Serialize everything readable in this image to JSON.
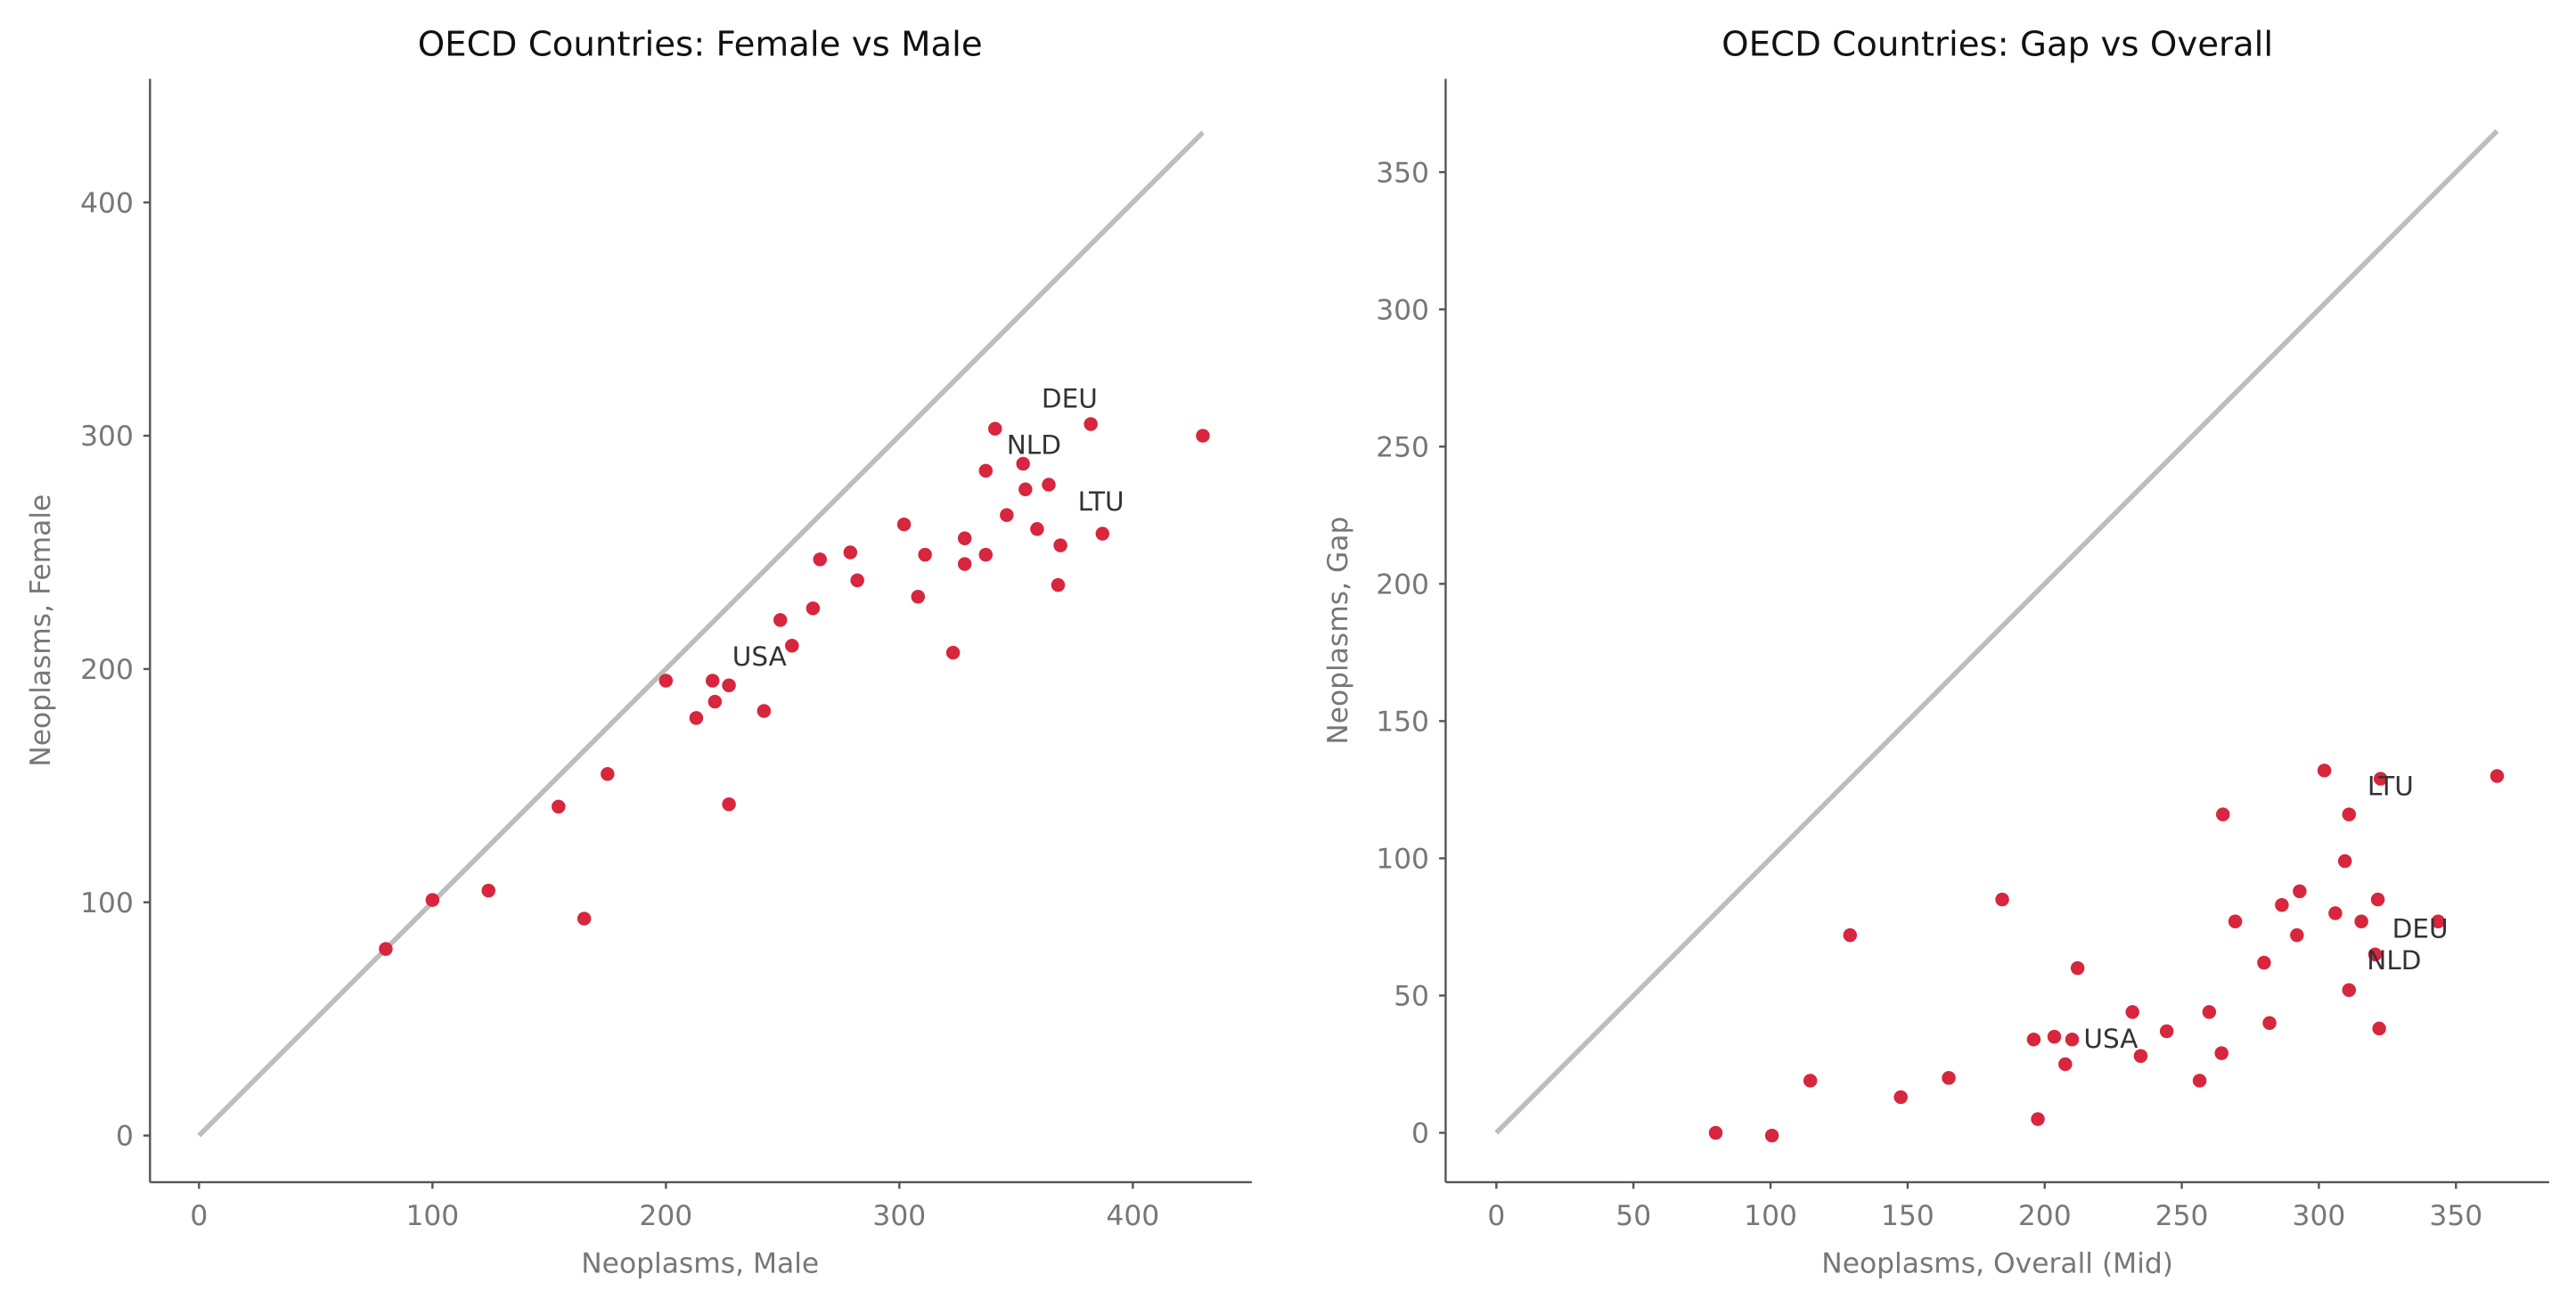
{
  "chart_data": [
    {
      "type": "scatter",
      "title": "OECD Countries: Female vs Male",
      "xlabel": "Neoplasms, Male",
      "ylabel": "Neoplasms, Female",
      "xlim": [
        -21,
        451
      ],
      "ylim": [
        -20,
        453
      ],
      "xticks": [
        0,
        100,
        200,
        300,
        400
      ],
      "yticks": [
        0,
        100,
        200,
        300,
        400
      ],
      "reference_line": {
        "from": 0,
        "to": 430,
        "color": "#bdbdbd"
      },
      "point_color": "#d7263d",
      "points": [
        [
          80,
          80
        ],
        [
          100,
          101
        ],
        [
          124,
          105
        ],
        [
          165,
          93
        ],
        [
          154,
          141
        ],
        [
          175,
          155
        ],
        [
          200,
          195
        ],
        [
          213,
          179
        ],
        [
          220,
          195
        ],
        [
          221,
          186
        ],
        [
          227,
          193
        ],
        [
          227,
          142
        ],
        [
          242,
          182
        ],
        [
          249,
          221
        ],
        [
          254,
          210
        ],
        [
          263,
          226
        ],
        [
          266,
          247
        ],
        [
          279,
          250
        ],
        [
          282,
          238
        ],
        [
          302,
          262
        ],
        [
          308,
          231
        ],
        [
          311,
          249
        ],
        [
          323,
          207
        ],
        [
          328,
          256
        ],
        [
          328,
          245
        ],
        [
          337,
          249
        ],
        [
          337,
          285
        ],
        [
          341,
          303
        ],
        [
          346,
          266
        ],
        [
          353,
          288
        ],
        [
          354,
          277
        ],
        [
          359,
          260
        ],
        [
          364,
          279
        ],
        [
          368,
          236
        ],
        [
          369,
          253
        ],
        [
          382,
          305
        ],
        [
          387,
          258
        ],
        [
          430,
          300
        ]
      ],
      "labels": [
        {
          "text": "USA",
          "x": 227,
          "y": 193
        },
        {
          "text": "NLD",
          "x": 353,
          "y": 288
        },
        {
          "text": "DEU",
          "x": 382,
          "y": 305
        },
        {
          "text": "LTU",
          "x": 387,
          "y": 258
        }
      ]
    },
    {
      "type": "scatter",
      "title": "OECD Countries: Gap vs Overall",
      "xlabel": "Neoplasms, Overall (Mid)",
      "ylabel": "Neoplasms, Gap",
      "xlim": [
        -18.5,
        384
      ],
      "ylim": [
        -18,
        384
      ],
      "xticks": [
        0,
        50,
        100,
        150,
        200,
        250,
        300,
        350
      ],
      "yticks": [
        0,
        50,
        100,
        150,
        200,
        250,
        300,
        350
      ],
      "reference_line": {
        "from": 0,
        "to": 365,
        "color": "#bdbdbd"
      },
      "point_color": "#d7263d",
      "points": [
        [
          80,
          0
        ],
        [
          100.5,
          -1
        ],
        [
          114.5,
          19
        ],
        [
          129,
          72
        ],
        [
          147.5,
          13
        ],
        [
          165,
          20
        ],
        [
          197.5,
          5
        ],
        [
          196,
          34
        ],
        [
          207.5,
          25
        ],
        [
          203.5,
          35
        ],
        [
          210,
          34
        ],
        [
          184.5,
          85
        ],
        [
          212,
          60
        ],
        [
          235,
          28
        ],
        [
          232,
          44
        ],
        [
          244.5,
          37
        ],
        [
          256.5,
          19
        ],
        [
          264.5,
          29
        ],
        [
          260,
          44
        ],
        [
          282,
          40
        ],
        [
          269.5,
          77
        ],
        [
          280,
          62
        ],
        [
          265,
          116
        ],
        [
          292,
          72
        ],
        [
          286.5,
          83
        ],
        [
          293,
          88
        ],
        [
          311,
          52
        ],
        [
          322,
          38
        ],
        [
          306,
          80
        ],
        [
          320.5,
          65
        ],
        [
          315.5,
          77
        ],
        [
          309.5,
          99
        ],
        [
          321.5,
          85
        ],
        [
          302,
          132
        ],
        [
          311,
          116
        ],
        [
          343.5,
          77
        ],
        [
          322.5,
          129
        ],
        [
          365,
          130
        ]
      ],
      "labels": [
        {
          "text": "USA",
          "x": 210,
          "y": 34
        },
        {
          "text": "NLD",
          "x": 320.5,
          "y": 65
        },
        {
          "text": "DEU",
          "x": 343.5,
          "y": 77
        },
        {
          "text": "LTU",
          "x": 322.5,
          "y": 129
        }
      ]
    }
  ]
}
